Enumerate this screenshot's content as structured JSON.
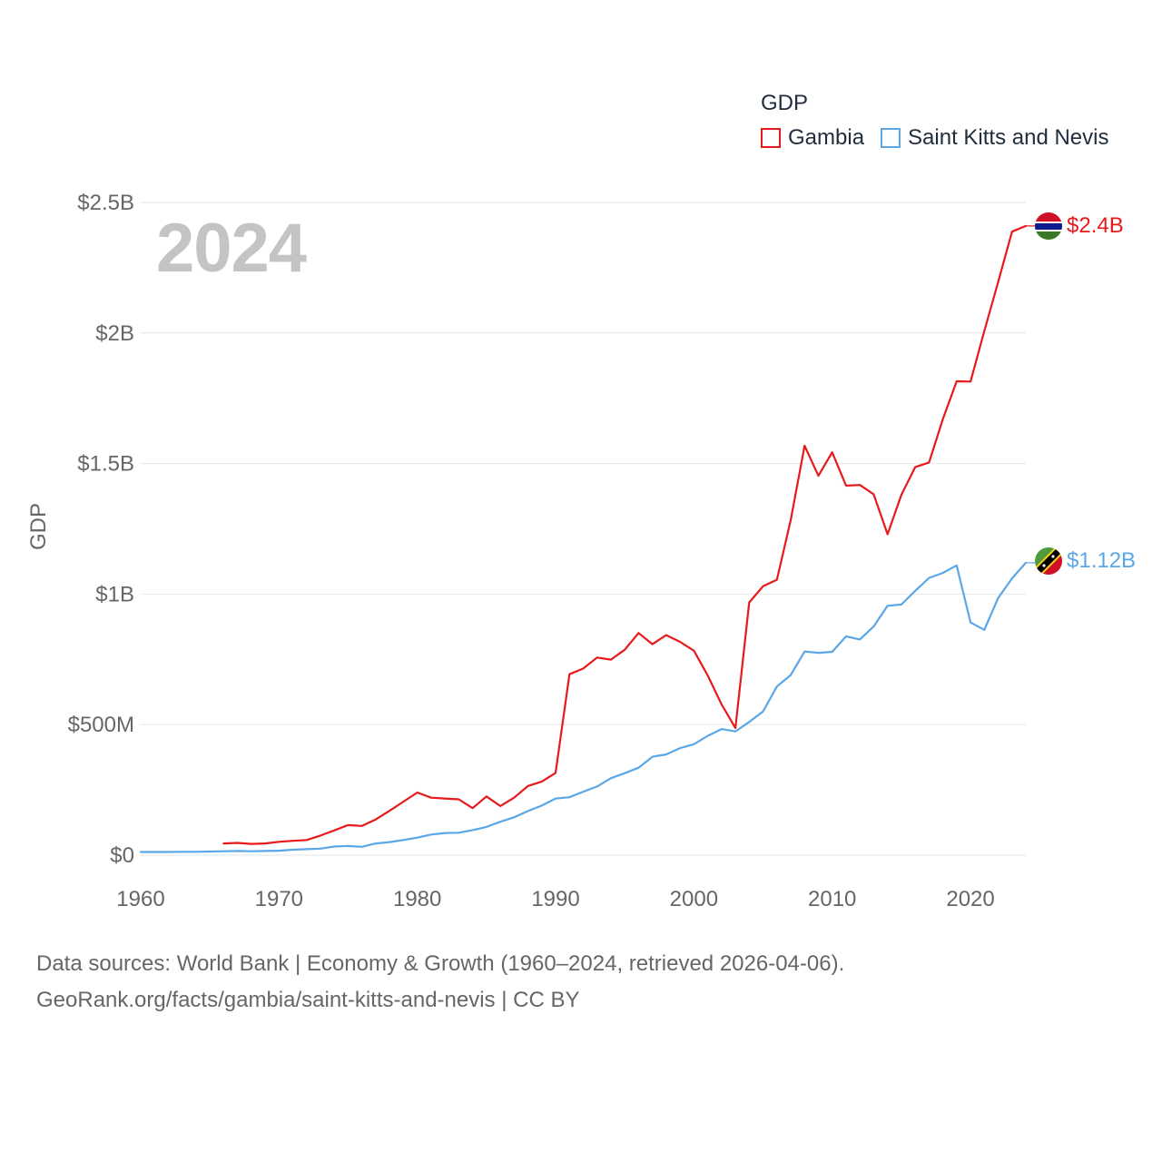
{
  "chart_data": {
    "type": "line",
    "year_label": "2024",
    "legend_title": "GDP",
    "ylabel": "GDP",
    "ylim": [
      0,
      2500000000
    ],
    "xlim": [
      1960,
      2024
    ],
    "grid": true,
    "legend_position": "top-right",
    "y_ticks": [
      {
        "value": 0,
        "label": "$0"
      },
      {
        "value": 500000000,
        "label": "$500M"
      },
      {
        "value": 1000000000,
        "label": "$1B"
      },
      {
        "value": 1500000000,
        "label": "$1.5B"
      },
      {
        "value": 2000000000,
        "label": "$2B"
      },
      {
        "value": 2500000000,
        "label": "$2.5B"
      }
    ],
    "x_ticks": [
      {
        "value": 1960,
        "label": "1960"
      },
      {
        "value": 1970,
        "label": "1970"
      },
      {
        "value": 1980,
        "label": "1980"
      },
      {
        "value": 1990,
        "label": "1990"
      },
      {
        "value": 2000,
        "label": "2000"
      },
      {
        "value": 2010,
        "label": "2010"
      },
      {
        "value": 2020,
        "label": "2020"
      }
    ],
    "series": [
      {
        "name": "Gambia",
        "color": "#e8191b",
        "end_label": "$2.4B",
        "flag": "gambia-flag-icon",
        "x": [
          1966,
          1967,
          1968,
          1969,
          1970,
          1971,
          1972,
          1973,
          1974,
          1975,
          1976,
          1977,
          1978,
          1979,
          1980,
          1981,
          1982,
          1983,
          1984,
          1985,
          1986,
          1987,
          1988,
          1989,
          1990,
          1991,
          1992,
          1993,
          1994,
          1995,
          1996,
          1997,
          1998,
          1999,
          2000,
          2001,
          2002,
          2003,
          2004,
          2005,
          2006,
          2007,
          2008,
          2009,
          2010,
          2011,
          2012,
          2013,
          2014,
          2015,
          2016,
          2017,
          2018,
          2019,
          2020,
          2021,
          2022,
          2023,
          2024
        ],
        "values": [
          45000000,
          47000000,
          43000000,
          45000000,
          51000000,
          55000000,
          58000000,
          75000000,
          95000000,
          115000000,
          112000000,
          137000000,
          170000000,
          205000000,
          240000000,
          220000000,
          217000000,
          214000000,
          180000000,
          225000000,
          188000000,
          220000000,
          265000000,
          282000000,
          315000000,
          693000000,
          715000000,
          757000000,
          749000000,
          787000000,
          851000000,
          808000000,
          843000000,
          817000000,
          783000000,
          688000000,
          578000000,
          487000000,
          968000000,
          1030000000,
          1055000000,
          1283000000,
          1568000000,
          1453000000,
          1543000000,
          1415000000,
          1418000000,
          1382000000,
          1229000000,
          1380000000,
          1486000000,
          1504000000,
          1670000000,
          1815000000,
          1814000000,
          2008000000,
          2195000000,
          2388000000,
          2410000000
        ]
      },
      {
        "name": "Saint Kitts and Nevis",
        "color": "#5aa7e8",
        "end_label": "$1.12B",
        "flag": "saint-kitts-and-nevis-flag-icon",
        "x": [
          1960,
          1961,
          1962,
          1963,
          1964,
          1965,
          1966,
          1967,
          1968,
          1969,
          1970,
          1971,
          1972,
          1973,
          1974,
          1975,
          1976,
          1977,
          1978,
          1979,
          1980,
          1981,
          1982,
          1983,
          1984,
          1985,
          1986,
          1987,
          1988,
          1989,
          1990,
          1991,
          1992,
          1993,
          1994,
          1995,
          1996,
          1997,
          1998,
          1999,
          2000,
          2001,
          2002,
          2003,
          2004,
          2005,
          2006,
          2007,
          2008,
          2009,
          2010,
          2011,
          2012,
          2013,
          2014,
          2015,
          2016,
          2017,
          2018,
          2019,
          2020,
          2021,
          2022,
          2023,
          2024
        ],
        "values": [
          12000000,
          12000000,
          12000000,
          13000000,
          13000000,
          14000000,
          15000000,
          16000000,
          15000000,
          16000000,
          17000000,
          21000000,
          23000000,
          25000000,
          33000000,
          35000000,
          32000000,
          45000000,
          50000000,
          58000000,
          67000000,
          79000000,
          85000000,
          86000000,
          96000000,
          108000000,
          128000000,
          145000000,
          169000000,
          190000000,
          217000000,
          222000000,
          243000000,
          263000000,
          295000000,
          314000000,
          335000000,
          377000000,
          386000000,
          410000000,
          425000000,
          457000000,
          483000000,
          474000000,
          510000000,
          550000000,
          646000000,
          690000000,
          780000000,
          775000000,
          779000000,
          838000000,
          826000000,
          876000000,
          955000000,
          960000000,
          1012000000,
          1062000000,
          1081000000,
          1110000000,
          891000000,
          863000000,
          985000000,
          1060000000,
          1120000000
        ]
      }
    ]
  },
  "footer": {
    "line1": "Data sources: World Bank | Economy & Growth (1960–2024, retrieved 2026-04-06).",
    "line2": "GeoRank.org/facts/gambia/saint-kitts-and-nevis | CC BY"
  }
}
